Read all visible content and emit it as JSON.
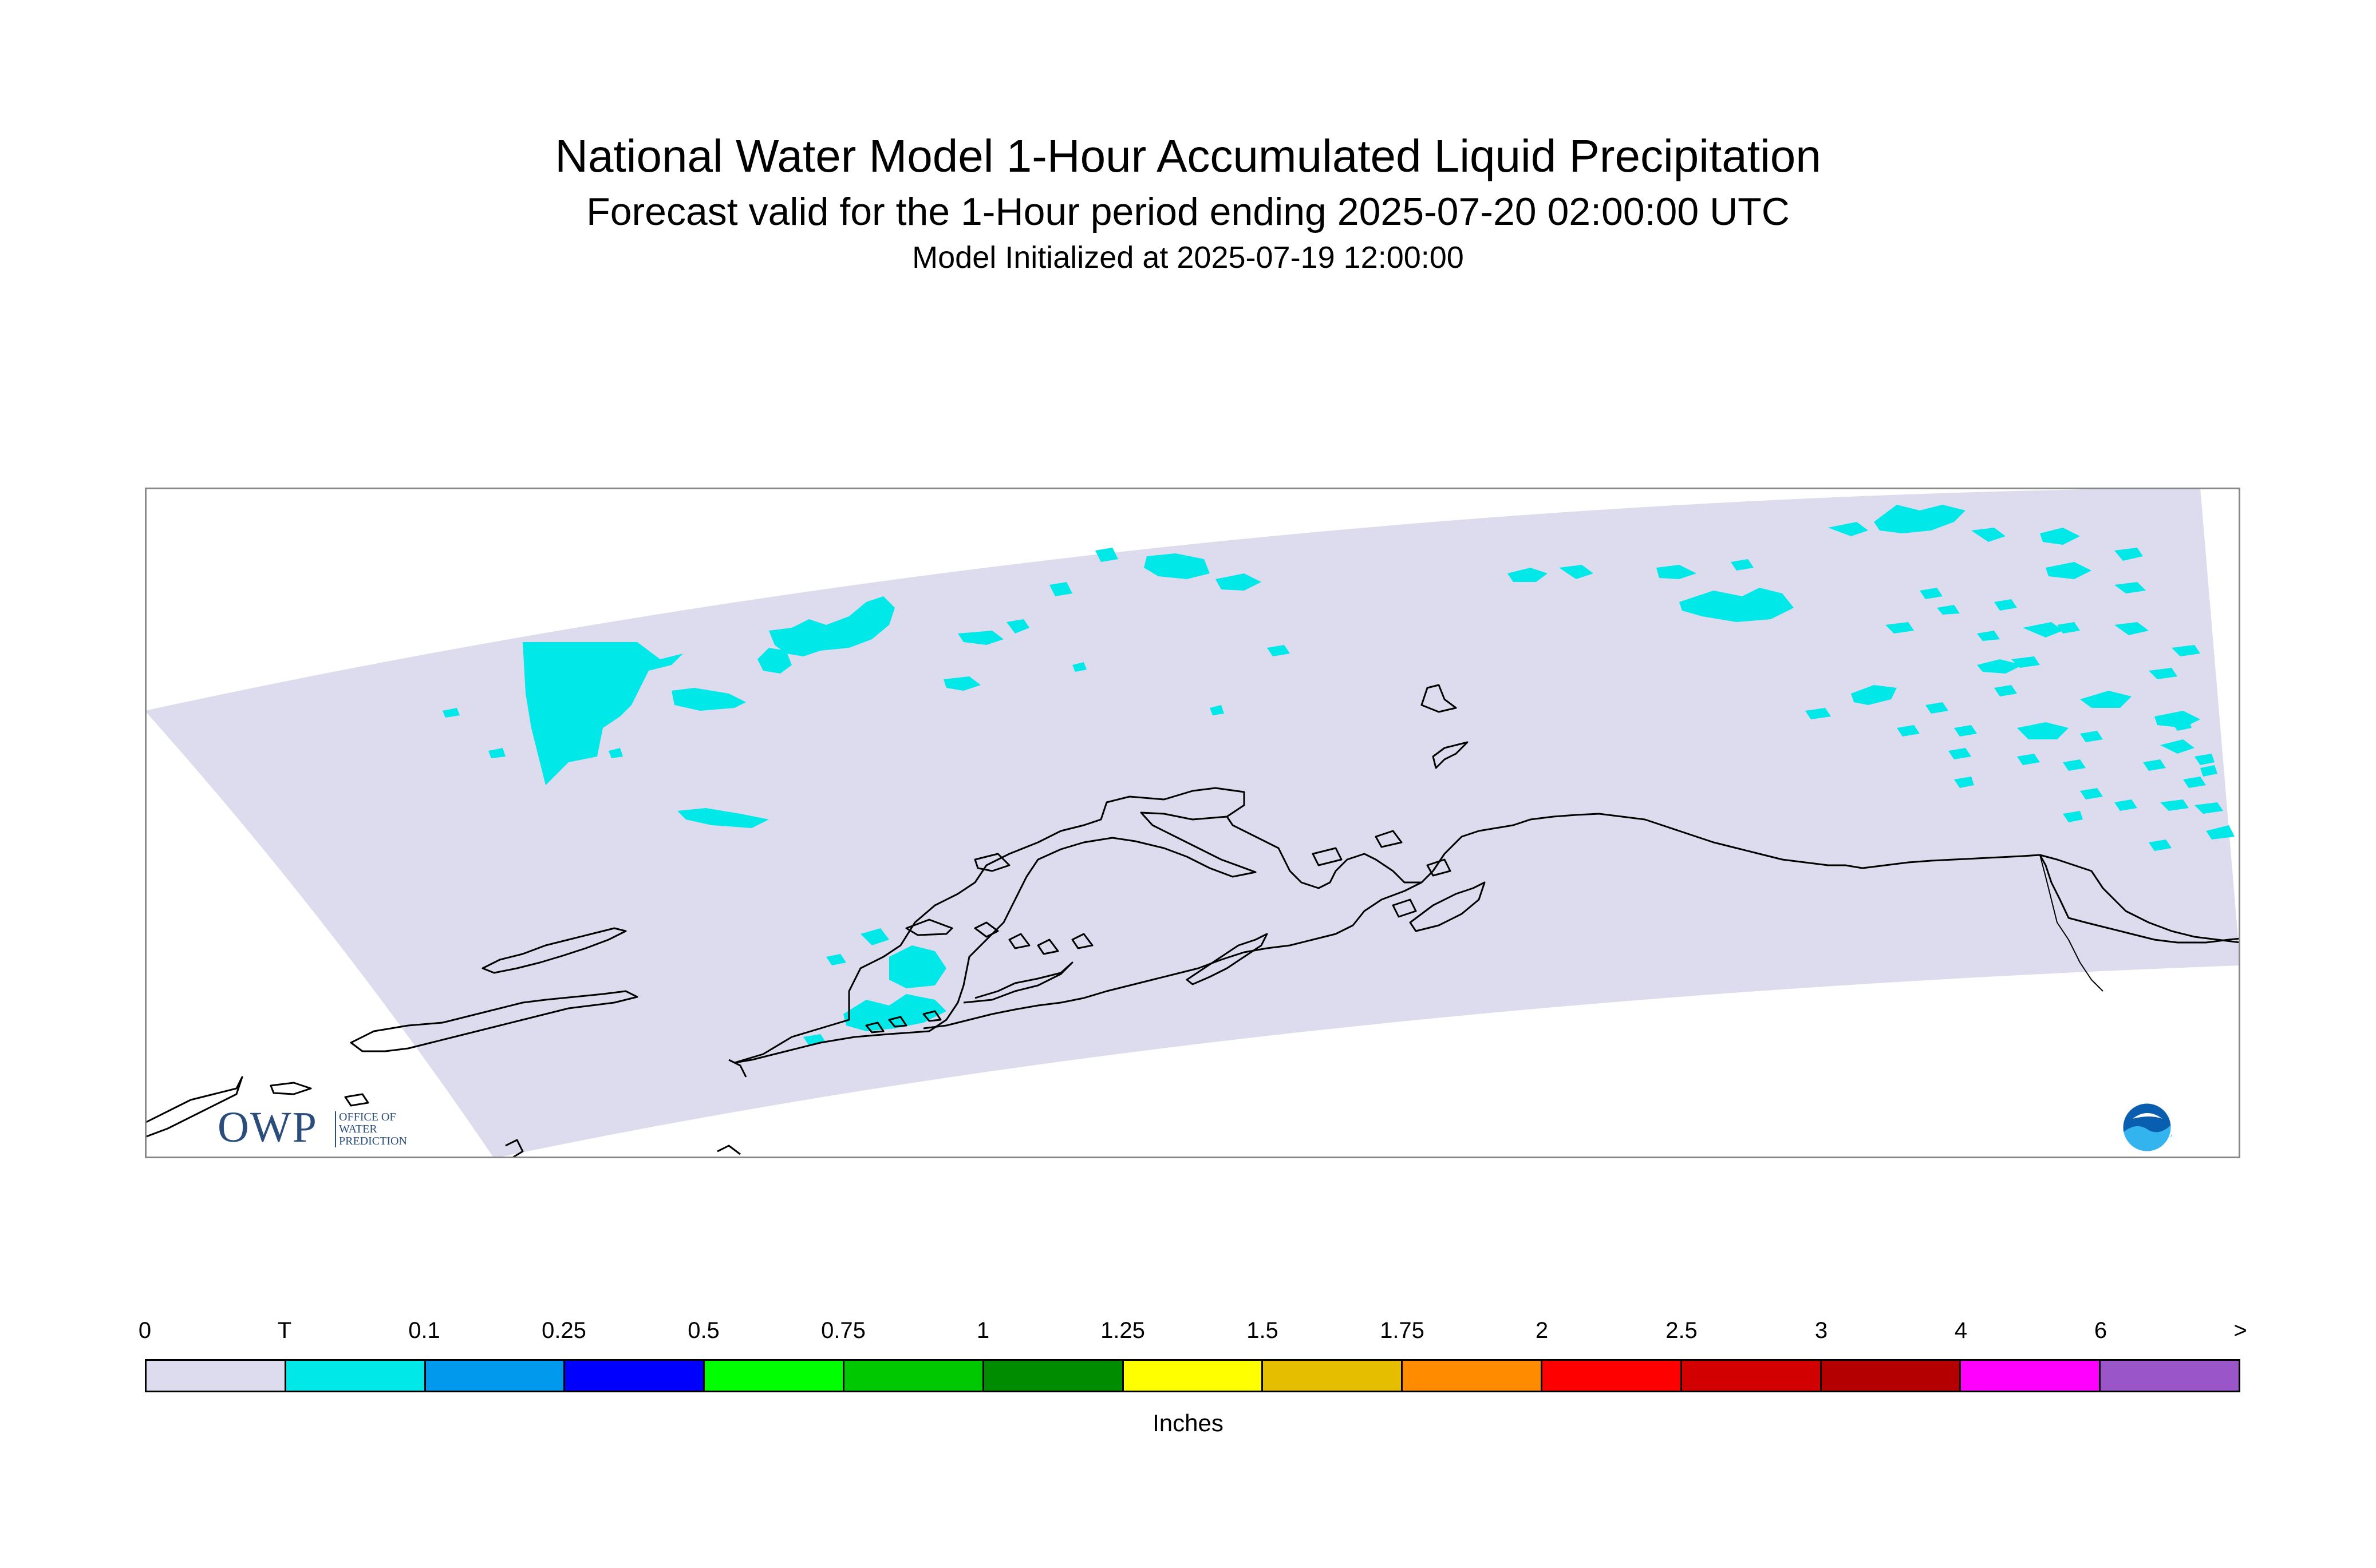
{
  "header": {
    "title": "National Water Model 1-Hour Accumulated Liquid Precipitation",
    "subtitle": "Forecast valid for the 1-Hour period ending 2025-07-20 02:00:00 UTC",
    "init": "Model Initialized at 2025-07-19 12:00:00"
  },
  "map": {
    "domain_color": "#dcdcee",
    "precip_color": "#00e8e8",
    "coast_color": "#000000",
    "frame_color": "#888888"
  },
  "logos": {
    "owp_letters": "OWP",
    "owp_words": [
      "OFFICE OF",
      "WATER",
      "PREDICTION"
    ],
    "noaa_icon": "noaa-logo-icon"
  },
  "legend": {
    "labels": [
      "0",
      "T",
      "0.1",
      "0.25",
      "0.5",
      "0.75",
      "1",
      "1.25",
      "1.5",
      "1.75",
      "2",
      "2.5",
      "3",
      "4",
      "6",
      ">"
    ],
    "colors": [
      "#dcdcee",
      "#00e8e8",
      "#0099ee",
      "#0000ff",
      "#00ff00",
      "#00c800",
      "#008c00",
      "#ffff00",
      "#e6be00",
      "#ff8c00",
      "#ff0000",
      "#d20000",
      "#b40000",
      "#ff00ff",
      "#9a55c8"
    ],
    "unit": "Inches"
  }
}
